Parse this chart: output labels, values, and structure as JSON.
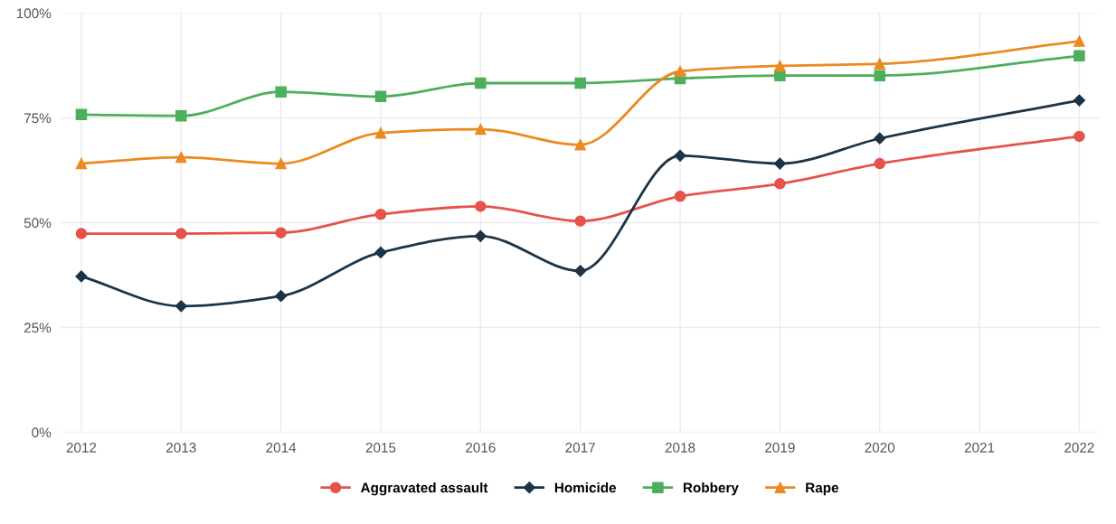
{
  "chart_data": {
    "type": "line",
    "x": [
      2012,
      2013,
      2014,
      2015,
      2016,
      2017,
      2018,
      2019,
      2020,
      2022
    ],
    "series": [
      {
        "name": "Aggravated assault",
        "color": "#e5534b",
        "marker": "circle",
        "values": [
          47.4,
          47.4,
          47.6,
          52,
          53.9,
          50.4,
          56.3,
          59.3,
          64.1,
          70.6
        ]
      },
      {
        "name": "Homicide",
        "color": "#1d3447",
        "marker": "diamond",
        "values": [
          37.2,
          30.1,
          32.5,
          42.9,
          46.8,
          38.5,
          66,
          64.1,
          70.1,
          79.2
        ]
      },
      {
        "name": "Robbery",
        "color": "#4caf5b",
        "marker": "square",
        "values": [
          75.8,
          75.5,
          81.2,
          80.1,
          83.3,
          83.3,
          84.4,
          85.1,
          85.1,
          89.8
        ]
      },
      {
        "name": "Rape",
        "color": "#ea8a21",
        "marker": "triangle",
        "values": [
          64.1,
          65.6,
          64.1,
          71.4,
          72.3,
          68.6,
          86.1,
          87.4,
          87.9,
          93.3
        ]
      }
    ],
    "xlim": [
      2011.8,
      2022.2
    ],
    "xticks": [
      2012,
      2013,
      2014,
      2015,
      2016,
      2017,
      2018,
      2019,
      2020,
      2021,
      2022
    ],
    "ylim": [
      0,
      100
    ],
    "yticks": [
      {
        "value": 0,
        "label": "0%"
      },
      {
        "value": 25,
        "label": "25%"
      },
      {
        "value": 50,
        "label": "50%"
      },
      {
        "value": 75,
        "label": "75%"
      },
      {
        "value": 100,
        "label": "100%"
      }
    ],
    "grid": true,
    "legend": "bottom",
    "line_style": "solid"
  }
}
